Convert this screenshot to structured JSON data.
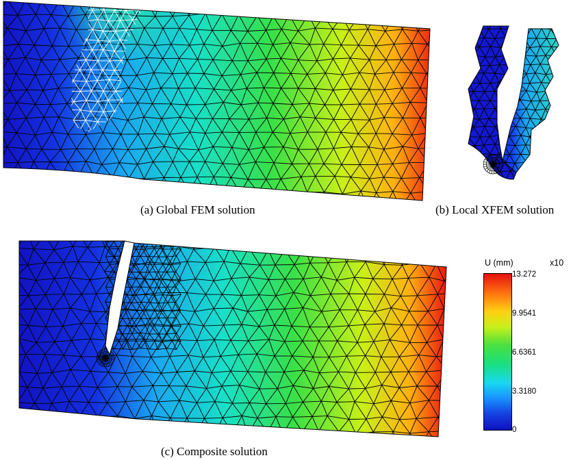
{
  "captions": {
    "a": "(a) Global FEM solution",
    "b": "(b) Local XFEM solution",
    "c": "(c) Composite solution"
  },
  "colorbar": {
    "title": "U (mm)",
    "multiplier": "x10",
    "ticks": [
      "13.272",
      "9.9541",
      "6.6361",
      "3.3180",
      "0"
    ]
  },
  "colors": {
    "map": [
      "#1010c8",
      "#1560ff",
      "#18d8f0",
      "#28e060",
      "#d8f018",
      "#ffa010",
      "#e81010"
    ],
    "mesh_line": "#000000",
    "patch_line": "#ffffff"
  }
}
